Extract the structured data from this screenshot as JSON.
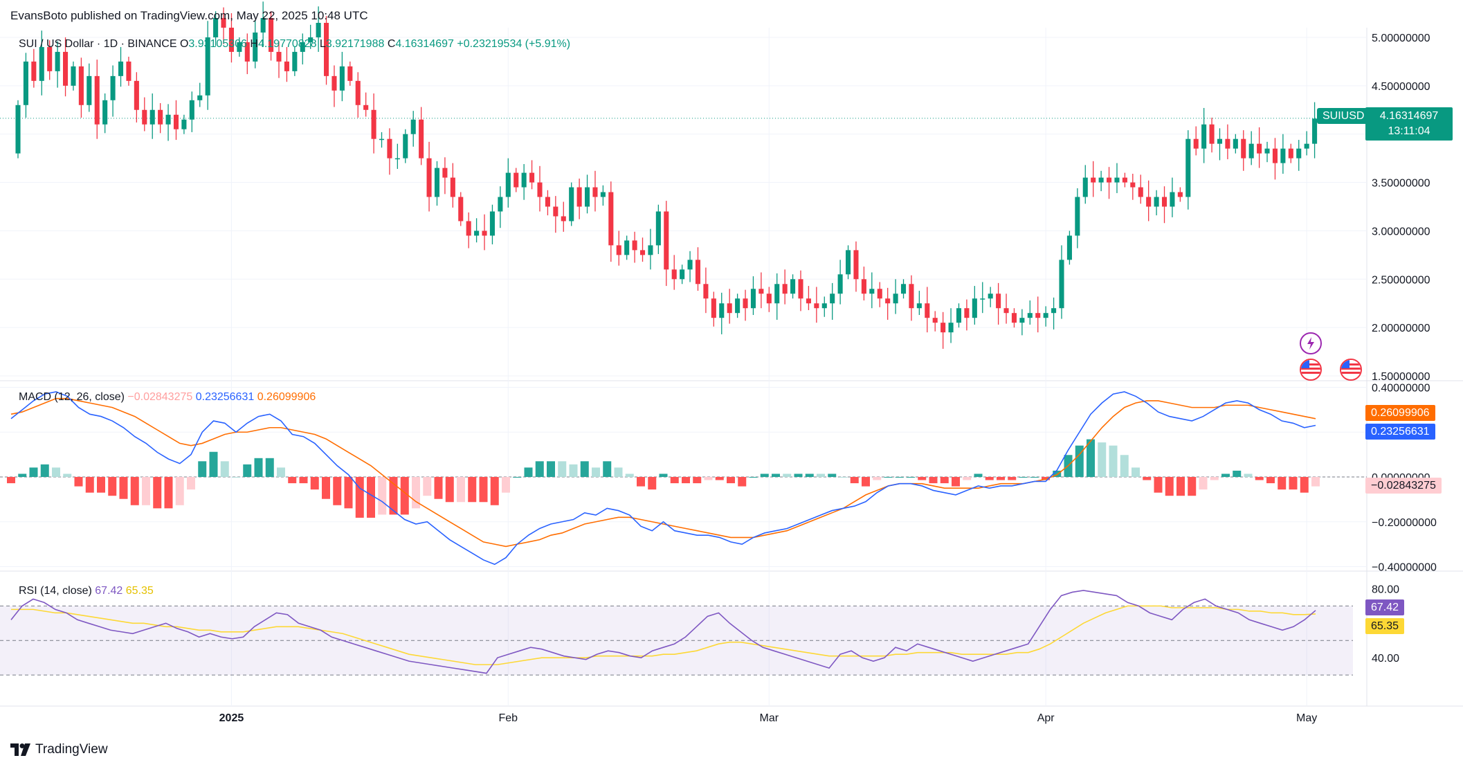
{
  "header": {
    "published": "EvansBoto published on TradingView.com, May 22, 2025 10:48 UTC"
  },
  "legend": {
    "symbol": "SUI / US Dollar · 1D · BINANCE",
    "o_label": "O",
    "o_value": "3.93105306",
    "h_label": "H",
    "h_value": "4.19770828",
    "l_label": "L",
    "l_value": "3.92171988",
    "c_label": "C",
    "c_value": "4.16314697",
    "change": "+0.23219534 (+5.91%)"
  },
  "price_tag": {
    "symbol": "SUIUSD",
    "price": "4.16314697",
    "countdown": "13:11:04"
  },
  "macd_legend": {
    "title": "MACD (12, 26, close)",
    "hist": "−0.02843275",
    "macd": "0.23256631",
    "signal": "0.26099906"
  },
  "macd_tags": {
    "signal": "0.26099906",
    "macd": "0.23256631",
    "hist": "−0.02843275"
  },
  "rsi_legend": {
    "title": "RSI (14, close)",
    "rsi": "67.42",
    "ma": "65.35"
  },
  "rsi_tags": {
    "rsi": "67.42",
    "ma": "65.35"
  },
  "brand": {
    "name": "TradingView"
  },
  "colors": {
    "up": "#089981",
    "down": "#f23645",
    "macd": "#2962ff",
    "signal": "#ff6d00",
    "rsi": "#7e57c2",
    "rsi_ma": "#fdd835",
    "hist_up": "#26a69a",
    "hist_up_light": "#b2dfdb",
    "hist_down": "#ff5252",
    "hist_down_light": "#ffcdd2"
  },
  "chart_data": [
    {
      "type": "candlestick",
      "title": "SUI / US Dollar · 1D · BINANCE",
      "x_ticks": [
        "2025",
        "Feb",
        "Mar",
        "Apr",
        "May"
      ],
      "y_ticks": [
        "5.00000000",
        "4.50000000",
        "4.00000000",
        "3.50000000",
        "3.00000000",
        "2.50000000",
        "2.00000000",
        "1.50000000"
      ],
      "ylim": [
        1.45,
        5.1
      ],
      "last_close": 4.16314697,
      "candles": [
        [
          3.8,
          4.3
        ],
        [
          4.3,
          4.75
        ],
        [
          4.75,
          4.55
        ],
        [
          4.55,
          4.9
        ],
        [
          4.9,
          4.65
        ],
        [
          4.65,
          4.85
        ],
        [
          4.85,
          4.5
        ],
        [
          4.5,
          4.7
        ],
        [
          4.7,
          4.3
        ],
        [
          4.3,
          4.6
        ],
        [
          4.6,
          4.1
        ],
        [
          4.1,
          4.35
        ],
        [
          4.35,
          4.6
        ],
        [
          4.6,
          4.75
        ],
        [
          4.75,
          4.55
        ],
        [
          4.55,
          4.25
        ],
        [
          4.25,
          4.1
        ],
        [
          4.1,
          4.25
        ],
        [
          4.25,
          4.1
        ],
        [
          4.1,
          4.2
        ],
        [
          4.2,
          4.05
        ],
        [
          4.05,
          4.15
        ],
        [
          4.15,
          4.35
        ],
        [
          4.35,
          4.4
        ],
        [
          4.4,
          5.0
        ],
        [
          5.0,
          5.2
        ],
        [
          5.2,
          5.1
        ],
        [
          5.1,
          4.85
        ],
        [
          4.85,
          4.95
        ],
        [
          4.95,
          4.75
        ],
        [
          4.75,
          5.05
        ],
        [
          5.05,
          5.2
        ],
        [
          5.2,
          4.85
        ],
        [
          4.85,
          4.75
        ],
        [
          4.75,
          4.65
        ],
        [
          4.65,
          4.85
        ],
        [
          4.85,
          4.95
        ],
        [
          4.95,
          5.0
        ],
        [
          5.0,
          5.15
        ],
        [
          5.15,
          4.6
        ],
        [
          4.6,
          4.45
        ],
        [
          4.45,
          4.7
        ],
        [
          4.7,
          4.55
        ],
        [
          4.55,
          4.3
        ],
        [
          4.3,
          4.25
        ],
        [
          4.25,
          3.95
        ],
        [
          3.95,
          3.95
        ],
        [
          3.95,
          3.75
        ],
        [
          3.75,
          3.75
        ],
        [
          3.75,
          4.0
        ],
        [
          4.0,
          4.15
        ],
        [
          4.15,
          3.75
        ],
        [
          3.75,
          3.35
        ],
        [
          3.35,
          3.65
        ],
        [
          3.65,
          3.55
        ],
        [
          3.55,
          3.35
        ],
        [
          3.35,
          3.1
        ],
        [
          3.1,
          2.95
        ],
        [
          2.95,
          3.0
        ],
        [
          3.0,
          2.95
        ],
        [
          2.95,
          3.2
        ],
        [
          3.2,
          3.35
        ],
        [
          3.35,
          3.6
        ],
        [
          3.6,
          3.45
        ],
        [
          3.45,
          3.6
        ],
        [
          3.6,
          3.5
        ],
        [
          3.5,
          3.35
        ],
        [
          3.35,
          3.25
        ],
        [
          3.25,
          3.15
        ],
        [
          3.15,
          3.1
        ],
        [
          3.1,
          3.45
        ],
        [
          3.45,
          3.25
        ],
        [
          3.25,
          3.45
        ],
        [
          3.45,
          3.35
        ],
        [
          3.35,
          3.4
        ],
        [
          3.4,
          2.85
        ],
        [
          2.85,
          2.75
        ],
        [
          2.75,
          2.9
        ],
        [
          2.9,
          2.8
        ],
        [
          2.8,
          2.75
        ],
        [
          2.75,
          2.85
        ],
        [
          2.85,
          3.2
        ],
        [
          3.2,
          2.6
        ],
        [
          2.6,
          2.5
        ],
        [
          2.5,
          2.6
        ],
        [
          2.6,
          2.7
        ],
        [
          2.7,
          2.45
        ],
        [
          2.45,
          2.3
        ],
        [
          2.3,
          2.1
        ],
        [
          2.1,
          2.25
        ],
        [
          2.25,
          2.15
        ],
        [
          2.15,
          2.3
        ],
        [
          2.3,
          2.2
        ],
        [
          2.2,
          2.4
        ],
        [
          2.4,
          2.35
        ],
        [
          2.35,
          2.25
        ],
        [
          2.25,
          2.45
        ],
        [
          2.45,
          2.35
        ],
        [
          2.35,
          2.5
        ],
        [
          2.5,
          2.3
        ],
        [
          2.3,
          2.25
        ],
        [
          2.25,
          2.2
        ],
        [
          2.2,
          2.25
        ],
        [
          2.25,
          2.35
        ],
        [
          2.35,
          2.55
        ],
        [
          2.55,
          2.8
        ],
        [
          2.8,
          2.5
        ],
        [
          2.5,
          2.35
        ],
        [
          2.35,
          2.4
        ],
        [
          2.4,
          2.3
        ],
        [
          2.3,
          2.25
        ],
        [
          2.25,
          2.35
        ],
        [
          2.35,
          2.45
        ],
        [
          2.45,
          2.2
        ],
        [
          2.2,
          2.25
        ],
        [
          2.25,
          2.1
        ],
        [
          2.1,
          2.05
        ],
        [
          2.05,
          1.95
        ],
        [
          1.95,
          2.05
        ],
        [
          2.05,
          2.2
        ],
        [
          2.2,
          2.1
        ],
        [
          2.1,
          2.3
        ],
        [
          2.3,
          2.3
        ],
        [
          2.3,
          2.35
        ],
        [
          2.35,
          2.2
        ],
        [
          2.2,
          2.15
        ],
        [
          2.15,
          2.05
        ],
        [
          2.05,
          2.1
        ],
        [
          2.1,
          2.15
        ],
        [
          2.15,
          2.1
        ],
        [
          2.1,
          2.15
        ],
        [
          2.15,
          2.2
        ],
        [
          2.2,
          2.7
        ],
        [
          2.7,
          2.95
        ],
        [
          2.95,
          3.35
        ],
        [
          3.35,
          3.55
        ],
        [
          3.55,
          3.5
        ],
        [
          3.5,
          3.55
        ],
        [
          3.55,
          3.5
        ],
        [
          3.5,
          3.55
        ],
        [
          3.55,
          3.5
        ],
        [
          3.5,
          3.45
        ],
        [
          3.45,
          3.35
        ],
        [
          3.35,
          3.25
        ],
        [
          3.25,
          3.35
        ],
        [
          3.35,
          3.25
        ],
        [
          3.25,
          3.4
        ],
        [
          3.4,
          3.35
        ],
        [
          3.35,
          3.95
        ],
        [
          3.95,
          3.85
        ],
        [
          3.85,
          4.1
        ],
        [
          4.1,
          3.9
        ],
        [
          3.9,
          3.95
        ],
        [
          3.95,
          3.85
        ],
        [
          3.85,
          3.95
        ],
        [
          3.95,
          3.75
        ],
        [
          3.75,
          3.9
        ],
        [
          3.9,
          3.8
        ],
        [
          3.8,
          3.85
        ],
        [
          3.85,
          3.7
        ],
        [
          3.7,
          3.85
        ],
        [
          3.85,
          3.75
        ],
        [
          3.75,
          3.85
        ],
        [
          3.85,
          3.9
        ],
        [
          3.9,
          4.16
        ]
      ]
    },
    {
      "type": "line",
      "title": "MACD (12, 26, close)",
      "y_ticks": [
        "0.40000000",
        "0.20000000",
        "0.00000000",
        "−0.20000000",
        "−0.40000000"
      ],
      "ylim": [
        -0.42,
        0.42
      ],
      "series": [
        {
          "name": "MACD",
          "values": [
            0.26,
            0.3,
            0.34,
            0.37,
            0.38,
            0.36,
            0.31,
            0.28,
            0.27,
            0.25,
            0.22,
            0.18,
            0.15,
            0.11,
            0.08,
            0.06,
            0.1,
            0.2,
            0.25,
            0.24,
            0.2,
            0.24,
            0.27,
            0.28,
            0.25,
            0.19,
            0.18,
            0.15,
            0.1,
            0.05,
            0.01,
            -0.05,
            -0.08,
            -0.11,
            -0.15,
            -0.19,
            -0.21,
            -0.2,
            -0.24,
            -0.28,
            -0.31,
            -0.34,
            -0.37,
            -0.39,
            -0.36,
            -0.3,
            -0.26,
            -0.23,
            -0.21,
            -0.2,
            -0.19,
            -0.16,
            -0.17,
            -0.14,
            -0.15,
            -0.17,
            -0.22,
            -0.24,
            -0.2,
            -0.24,
            -0.25,
            -0.26,
            -0.26,
            -0.27,
            -0.29,
            -0.3,
            -0.27,
            -0.25,
            -0.24,
            -0.23,
            -0.21,
            -0.19,
            -0.17,
            -0.15,
            -0.14,
            -0.13,
            -0.11,
            -0.07,
            -0.04,
            -0.03,
            -0.03,
            -0.04,
            -0.06,
            -0.07,
            -0.08,
            -0.06,
            -0.04,
            -0.05,
            -0.04,
            -0.04,
            -0.03,
            -0.02,
            -0.02,
            0.03,
            0.12,
            0.2,
            0.28,
            0.33,
            0.37,
            0.38,
            0.36,
            0.33,
            0.29,
            0.27,
            0.26,
            0.25,
            0.27,
            0.3,
            0.33,
            0.34,
            0.33,
            0.3,
            0.28,
            0.25,
            0.24,
            0.22,
            0.23
          ]
        },
        {
          "name": "Signal",
          "values": [
            0.28,
            0.29,
            0.31,
            0.33,
            0.35,
            0.35,
            0.34,
            0.33,
            0.32,
            0.31,
            0.29,
            0.27,
            0.24,
            0.21,
            0.18,
            0.15,
            0.14,
            0.15,
            0.17,
            0.19,
            0.2,
            0.2,
            0.21,
            0.22,
            0.22,
            0.21,
            0.2,
            0.19,
            0.17,
            0.14,
            0.11,
            0.08,
            0.05,
            0.01,
            -0.03,
            -0.07,
            -0.11,
            -0.14,
            -0.17,
            -0.2,
            -0.23,
            -0.26,
            -0.29,
            -0.3,
            -0.31,
            -0.3,
            -0.29,
            -0.28,
            -0.26,
            -0.25,
            -0.23,
            -0.21,
            -0.2,
            -0.19,
            -0.18,
            -0.18,
            -0.19,
            -0.2,
            -0.21,
            -0.22,
            -0.23,
            -0.24,
            -0.25,
            -0.26,
            -0.27,
            -0.27,
            -0.27,
            -0.26,
            -0.25,
            -0.24,
            -0.22,
            -0.2,
            -0.18,
            -0.16,
            -0.14,
            -0.11,
            -0.08,
            -0.06,
            -0.04,
            -0.03,
            -0.03,
            -0.03,
            -0.04,
            -0.05,
            -0.05,
            -0.05,
            -0.05,
            -0.04,
            -0.03,
            -0.03,
            -0.03,
            -0.02,
            -0.01,
            0.01,
            0.05,
            0.1,
            0.16,
            0.22,
            0.27,
            0.31,
            0.33,
            0.34,
            0.34,
            0.33,
            0.32,
            0.31,
            0.31,
            0.31,
            0.32,
            0.32,
            0.32,
            0.31,
            0.3,
            0.29,
            0.28,
            0.27,
            0.26
          ]
        }
      ]
    },
    {
      "type": "line",
      "title": "RSI (14, close)",
      "y_ticks": [
        "80.00",
        "40.00"
      ],
      "ylim": [
        20,
        85
      ],
      "bands": [
        70,
        50,
        30
      ],
      "series": [
        {
          "name": "RSI",
          "values": [
            62,
            70,
            74,
            72,
            68,
            66,
            62,
            60,
            58,
            56,
            55,
            54,
            56,
            58,
            60,
            57,
            55,
            52,
            54,
            52,
            51,
            52,
            58,
            62,
            66,
            65,
            60,
            58,
            56,
            52,
            50,
            48,
            46,
            44,
            42,
            40,
            38,
            37,
            36,
            35,
            34,
            33,
            32,
            31,
            40,
            42,
            44,
            46,
            45,
            43,
            41,
            40,
            39,
            42,
            44,
            43,
            41,
            40,
            44,
            46,
            48,
            52,
            58,
            64,
            66,
            60,
            55,
            50,
            46,
            44,
            42,
            40,
            38,
            36,
            34,
            42,
            44,
            40,
            38,
            40,
            46,
            44,
            48,
            46,
            44,
            42,
            40,
            38,
            40,
            42,
            44,
            46,
            48,
            58,
            68,
            76,
            78,
            79,
            78,
            77,
            76,
            72,
            70,
            66,
            64,
            62,
            68,
            72,
            74,
            70,
            68,
            66,
            62,
            60,
            58,
            56,
            58,
            62,
            67.42
          ]
        },
        {
          "name": "RSI MA",
          "values": [
            68,
            68,
            68,
            67,
            66,
            66,
            65,
            64,
            63,
            62,
            61,
            60,
            60,
            59,
            58,
            58,
            57,
            56,
            56,
            55,
            55,
            55,
            56,
            57,
            58,
            58,
            58,
            57,
            56,
            55,
            54,
            52,
            50,
            48,
            46,
            44,
            42,
            41,
            40,
            39,
            38,
            37,
            36,
            36,
            36,
            37,
            38,
            39,
            40,
            40,
            40,
            40,
            40,
            41,
            41,
            41,
            41,
            41,
            41,
            42,
            42,
            43,
            44,
            46,
            48,
            49,
            49,
            48,
            47,
            46,
            45,
            44,
            43,
            42,
            41,
            41,
            41,
            41,
            41,
            41,
            42,
            42,
            43,
            43,
            43,
            43,
            42,
            42,
            42,
            42,
            42,
            43,
            43,
            45,
            48,
            52,
            56,
            60,
            63,
            66,
            68,
            70,
            70,
            70,
            70,
            69,
            69,
            69,
            69,
            69,
            68,
            68,
            67,
            67,
            66,
            66,
            65,
            65,
            65.35
          ]
        }
      ]
    }
  ]
}
